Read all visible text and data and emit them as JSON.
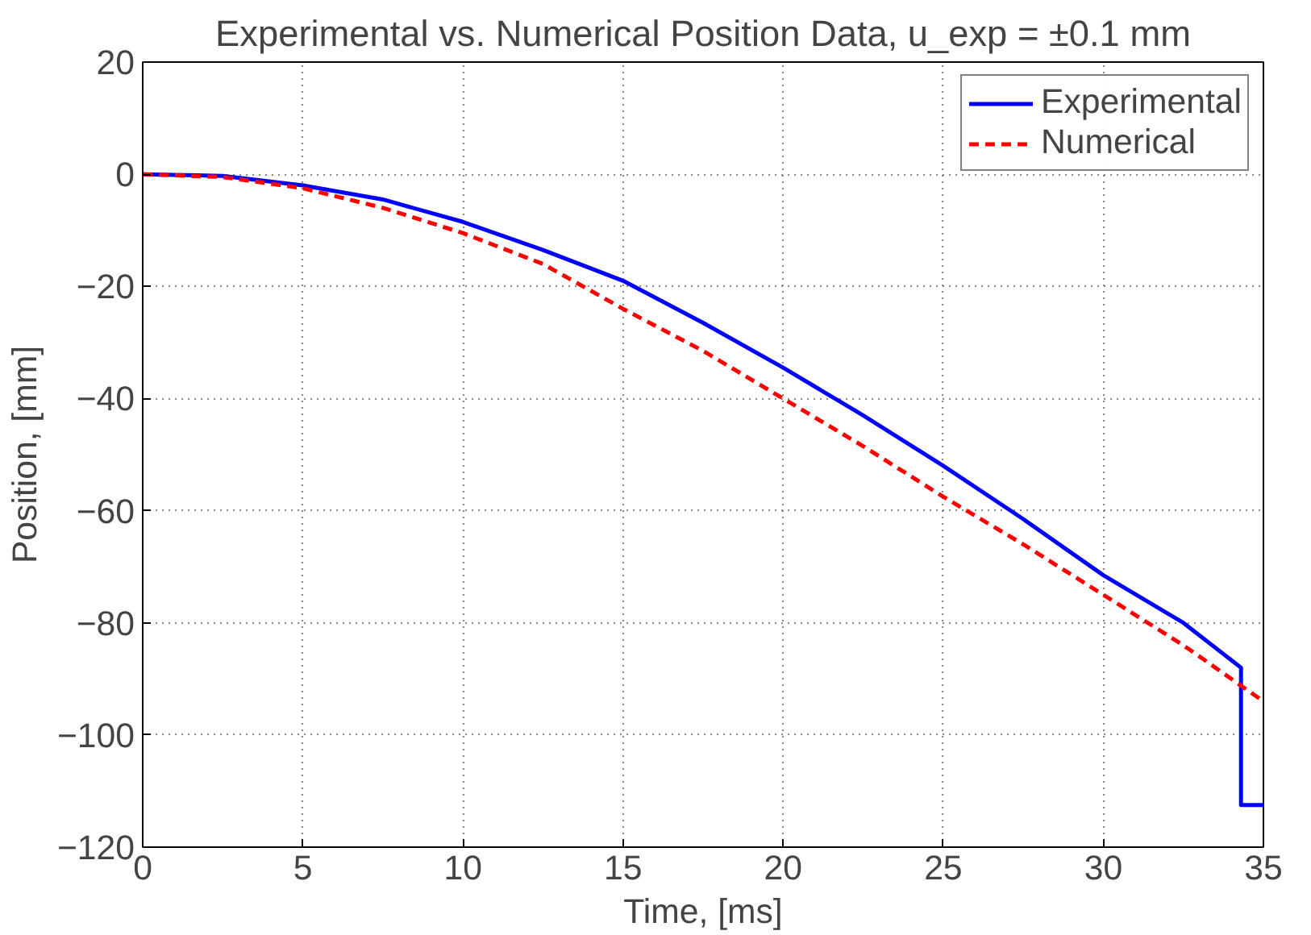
{
  "chart_data": {
    "type": "line",
    "title": "Experimental vs. Numerical Position Data, u_exp = ±0.1 mm",
    "xlabel": "Time, [ms]",
    "ylabel": "Position, [mm]",
    "xlim": [
      0,
      35
    ],
    "ylim": [
      -120,
      20
    ],
    "xticks": [
      0,
      5,
      10,
      15,
      20,
      25,
      30,
      35
    ],
    "yticks": [
      {
        "value": -120,
        "label": "−120"
      },
      {
        "value": -100,
        "label": "−100"
      },
      {
        "value": -80,
        "label": "−80"
      },
      {
        "value": -60,
        "label": "−60"
      },
      {
        "value": -40,
        "label": "−40"
      },
      {
        "value": -20,
        "label": "−20"
      },
      0,
      20
    ],
    "grid": true,
    "legend": "top right",
    "marker": "none",
    "series": [
      {
        "name": "Experimental",
        "color": "#0000ff",
        "line_style": "solid",
        "x": [
          0,
          2.5,
          5,
          7.5,
          10,
          12.5,
          15,
          17.5,
          20,
          22.5,
          25,
          27.5,
          30,
          32.5,
          34.3,
          34.3,
          35
        ],
        "values": [
          0,
          -0.3,
          -2,
          -4.5,
          -8.5,
          -13.5,
          -19,
          -26.5,
          -34.5,
          -43,
          -52,
          -61.5,
          -71.5,
          -80,
          -88,
          -112.5,
          -112.5
        ]
      },
      {
        "name": "Numerical",
        "color": "#ff0000",
        "line_style": "dashed",
        "x": [
          0,
          2.5,
          5,
          7.5,
          10,
          12.5,
          15,
          17.5,
          20,
          22.5,
          25,
          27.5,
          30,
          32.5,
          35
        ],
        "values": [
          0,
          -0.5,
          -2.5,
          -6,
          -10.5,
          -16,
          -24,
          -31.5,
          -40,
          -48.5,
          -57.5,
          -66,
          -75,
          -84,
          -94
        ]
      }
    ]
  }
}
